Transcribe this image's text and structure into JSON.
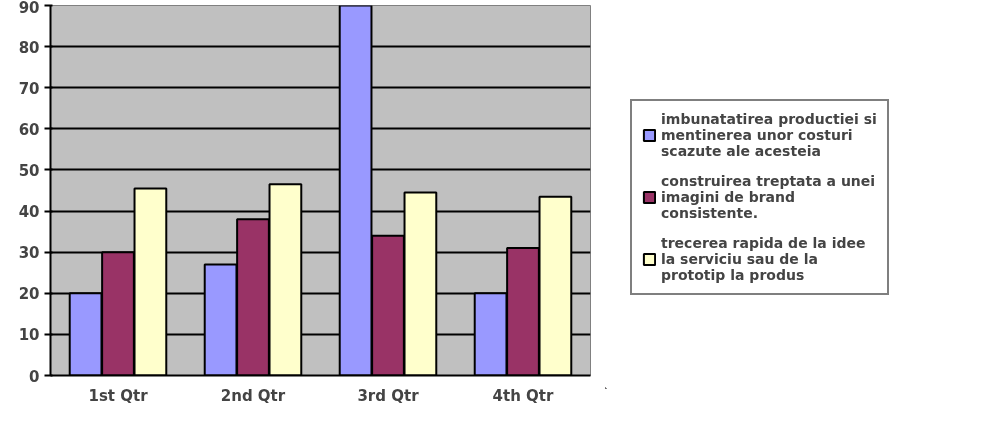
{
  "chart_data": {
    "type": "bar",
    "categories": [
      "1st Qtr",
      "2nd Qtr",
      "3rd Qtr",
      "4th Qtr"
    ],
    "series": [
      {
        "name": "imbunatatirea productiei si mentinerea unor costuri scazute ale acesteia",
        "color": "#9999ff",
        "values": [
          20,
          27,
          90,
          20
        ]
      },
      {
        "name": "construirea treptata a unei imagini de brand consistente.",
        "color": "#993366",
        "values": [
          30,
          38,
          34,
          31
        ]
      },
      {
        "name": "trecerea rapida de la idee la serviciu sau de la prototip la produs",
        "color": "#ffffcc",
        "values": [
          45.5,
          46.5,
          44.5,
          43.5
        ]
      }
    ],
    "ylim": [
      0,
      90
    ],
    "yticks": [
      0,
      10,
      20,
      30,
      40,
      50,
      60,
      70,
      80,
      90
    ],
    "grid": "y",
    "legend": "right"
  }
}
